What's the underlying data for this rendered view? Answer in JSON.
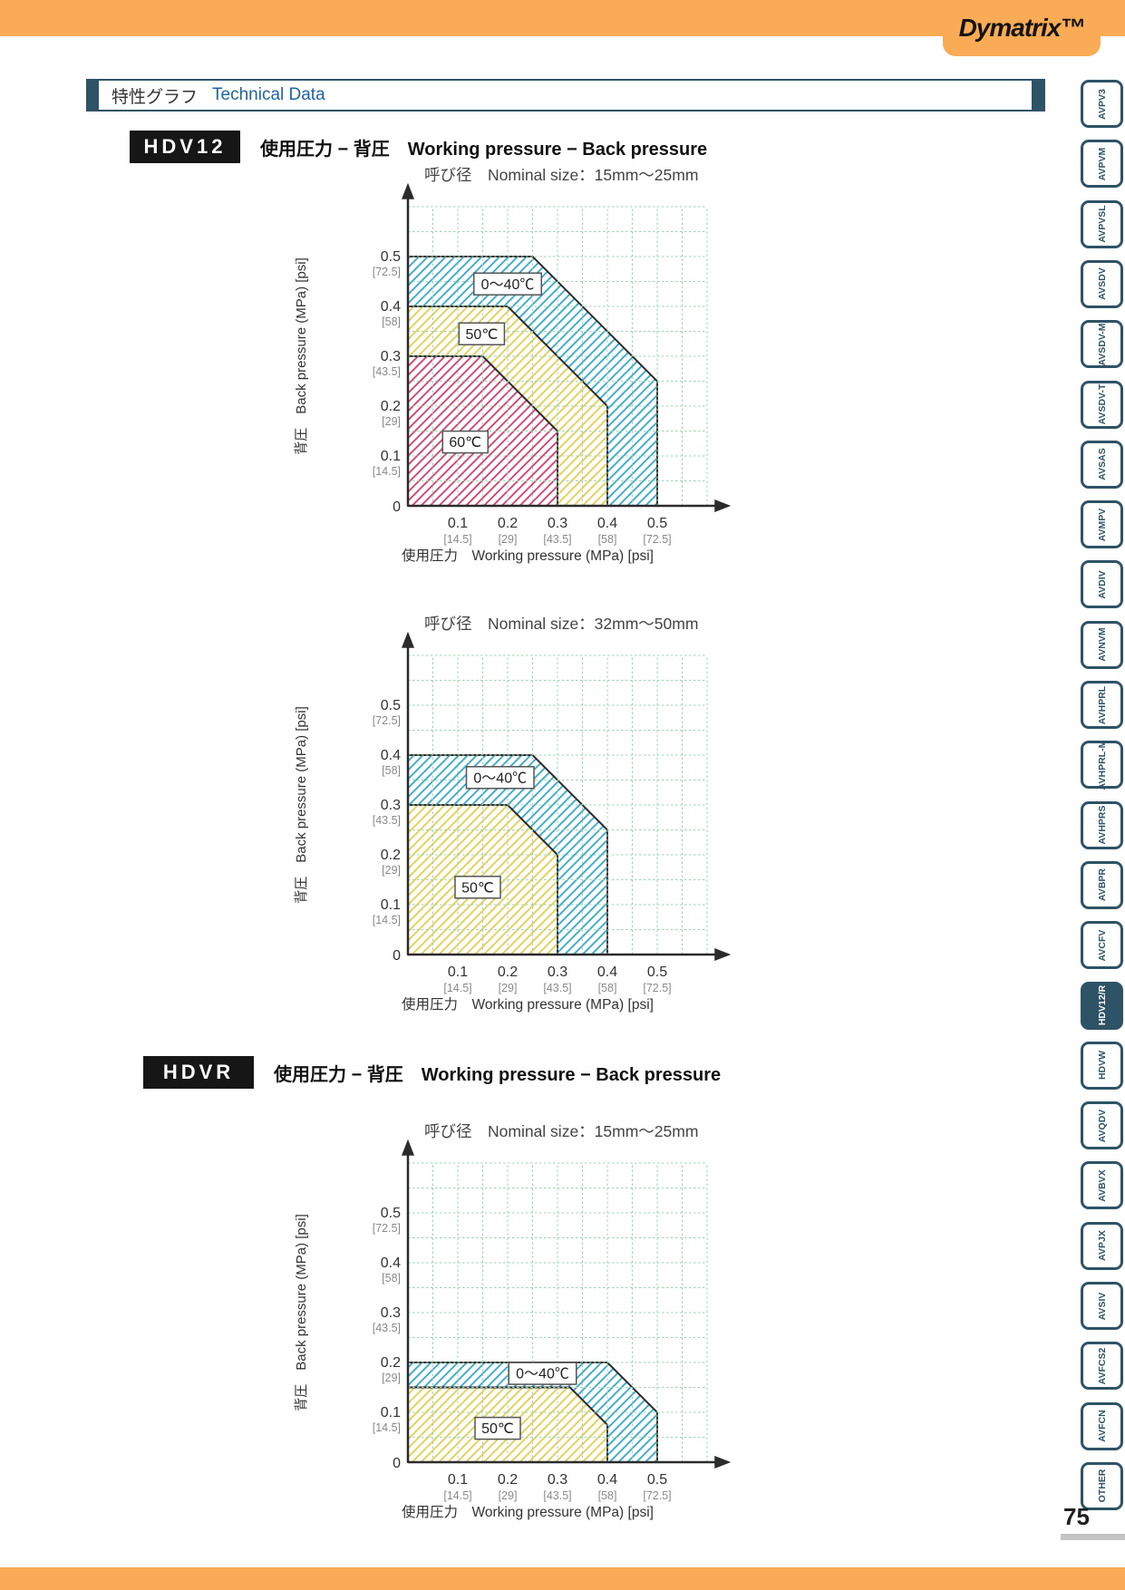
{
  "brand": {
    "logo_text": "Dymatrix™"
  },
  "header_bar": {
    "title_jp": "特性グラフ",
    "title_en": "Technical Data"
  },
  "sections": [
    {
      "code": "HDV12",
      "title": "使用圧力 − 背圧　Working pressure − Back pressure"
    },
    {
      "code": "HDVR",
      "title": "使用圧力 − 背圧　Working pressure − Back pressure"
    }
  ],
  "page_number": "75",
  "sidebar": {
    "tabs": [
      {
        "label": "AVPV3",
        "active": false
      },
      {
        "label": "AVPVM",
        "active": false
      },
      {
        "label": "AVPVSL",
        "active": false
      },
      {
        "label": "AVSDV",
        "active": false
      },
      {
        "label": "AVSDV-M",
        "active": false
      },
      {
        "label": "AVSDV-T",
        "active": false
      },
      {
        "label": "AVSAS",
        "active": false
      },
      {
        "label": "AVMPV",
        "active": false
      },
      {
        "label": "AVDIV",
        "active": false
      },
      {
        "label": "AVNVM",
        "active": false
      },
      {
        "label": "AVHPRL",
        "active": false
      },
      {
        "label": "AVHPRL-M",
        "active": false
      },
      {
        "label": "AVHPRS",
        "active": false
      },
      {
        "label": "AVBPR",
        "active": false
      },
      {
        "label": "AVCFV",
        "active": false
      },
      {
        "label": "HDV12/R",
        "active": true
      },
      {
        "label": "HDVW",
        "active": false
      },
      {
        "label": "AVQDV",
        "active": false
      },
      {
        "label": "AVBVX",
        "active": false
      },
      {
        "label": "AVPJX",
        "active": false
      },
      {
        "label": "AVSIV",
        "active": false
      },
      {
        "label": "AVFCS2",
        "active": false
      },
      {
        "label": "AVFCN",
        "active": false
      },
      {
        "label": "OTHER",
        "active": false
      }
    ]
  },
  "colors": {
    "orange": "#FAAB55",
    "slate": "#2E5266",
    "link_blue": "#1C64A8",
    "grid_green": "#9ED4B0",
    "hatch_blue": "#2FA9C9",
    "hatch_yellow": "#E3CF4B",
    "hatch_red": "#D23A6E"
  },
  "chart_data": [
    {
      "type": "area",
      "section": "HDV12",
      "title": "呼び径　Nominal size：15mm～25mm",
      "xlabel": "使用圧力　Working pressure (MPa) [psi]",
      "ylabel": "背圧　Back pressure (MPa) [psi]",
      "xlim": [
        0,
        0.6
      ],
      "ylim": [
        0,
        0.6
      ],
      "grid_step": 0.05,
      "grid": true,
      "origin_label": "0",
      "tick_values": [
        0.1,
        0.2,
        0.3,
        0.4,
        0.5
      ],
      "tick_mpa": [
        "0.1",
        "0.2",
        "0.3",
        "0.4",
        "0.5"
      ],
      "tick_psi": [
        "[14.5]",
        "[29]",
        "[43.5]",
        "[58]",
        "[72.5]"
      ],
      "series": [
        {
          "name": "0～40℃",
          "color": "#2FA9C9",
          "boundary": [
            [
              0,
              0.5
            ],
            [
              0.25,
              0.5
            ],
            [
              0.5,
              0.25
            ],
            [
              0.5,
              0
            ]
          ],
          "label_pos": [
            0.2,
            0.445
          ]
        },
        {
          "name": "50℃",
          "color": "#E3CF4B",
          "boundary": [
            [
              0,
              0.4
            ],
            [
              0.2,
              0.4
            ],
            [
              0.4,
              0.2
            ],
            [
              0.4,
              0
            ]
          ],
          "label_pos": [
            0.148,
            0.345
          ]
        },
        {
          "name": "60℃",
          "color": "#D23A6E",
          "boundary": [
            [
              0,
              0.3
            ],
            [
              0.15,
              0.3
            ],
            [
              0.3,
              0.15
            ],
            [
              0.3,
              0
            ]
          ],
          "label_pos": [
            0.115,
            0.128
          ]
        }
      ]
    },
    {
      "type": "area",
      "section": "HDV12",
      "title": "呼び径　Nominal size：32mm～50mm",
      "xlabel": "使用圧力　Working pressure (MPa) [psi]",
      "ylabel": "背圧　Back pressure (MPa) [psi]",
      "xlim": [
        0,
        0.6
      ],
      "ylim": [
        0,
        0.6
      ],
      "grid_step": 0.05,
      "grid": true,
      "origin_label": "0",
      "tick_values": [
        0.1,
        0.2,
        0.3,
        0.4,
        0.5
      ],
      "tick_mpa": [
        "0.1",
        "0.2",
        "0.3",
        "0.4",
        "0.5"
      ],
      "tick_psi": [
        "[14.5]",
        "[29]",
        "[43.5]",
        "[58]",
        "[72.5]"
      ],
      "series": [
        {
          "name": "0～40℃",
          "color": "#2FA9C9",
          "boundary": [
            [
              0,
              0.4
            ],
            [
              0.25,
              0.4
            ],
            [
              0.4,
              0.25
            ],
            [
              0.4,
              0
            ]
          ],
          "label_pos": [
            0.185,
            0.355
          ]
        },
        {
          "name": "50℃",
          "color": "#E3CF4B",
          "boundary": [
            [
              0,
              0.3
            ],
            [
              0.2,
              0.3
            ],
            [
              0.3,
              0.2
            ],
            [
              0.3,
              0
            ]
          ],
          "label_pos": [
            0.14,
            0.135
          ]
        }
      ]
    },
    {
      "type": "area",
      "section": "HDVR",
      "title": "呼び径　Nominal size：15mm～25mm",
      "xlabel": "使用圧力　Working pressure (MPa) [psi]",
      "ylabel": "背圧　Back pressure (MPa) [psi]",
      "xlim": [
        0,
        0.6
      ],
      "ylim": [
        0,
        0.6
      ],
      "grid_step": 0.05,
      "grid": true,
      "origin_label": "0",
      "tick_values": [
        0.1,
        0.2,
        0.3,
        0.4,
        0.5
      ],
      "tick_mpa": [
        "0.1",
        "0.2",
        "0.3",
        "0.4",
        "0.5"
      ],
      "tick_psi": [
        "[14.5]",
        "[29]",
        "[43.5]",
        "[58]",
        "[72.5]"
      ],
      "series": [
        {
          "name": "0～40℃",
          "color": "#2FA9C9",
          "boundary": [
            [
              0,
              0.2
            ],
            [
              0.4,
              0.2
            ],
            [
              0.5,
              0.1
            ],
            [
              0.5,
              0
            ]
          ],
          "label_pos": [
            0.27,
            0.178
          ]
        },
        {
          "name": "50℃",
          "color": "#E3CF4B",
          "boundary": [
            [
              0,
              0.15
            ],
            [
              0.325,
              0.15
            ],
            [
              0.4,
              0.075
            ],
            [
              0.4,
              0
            ]
          ],
          "label_pos": [
            0.18,
            0.068
          ]
        }
      ]
    }
  ]
}
